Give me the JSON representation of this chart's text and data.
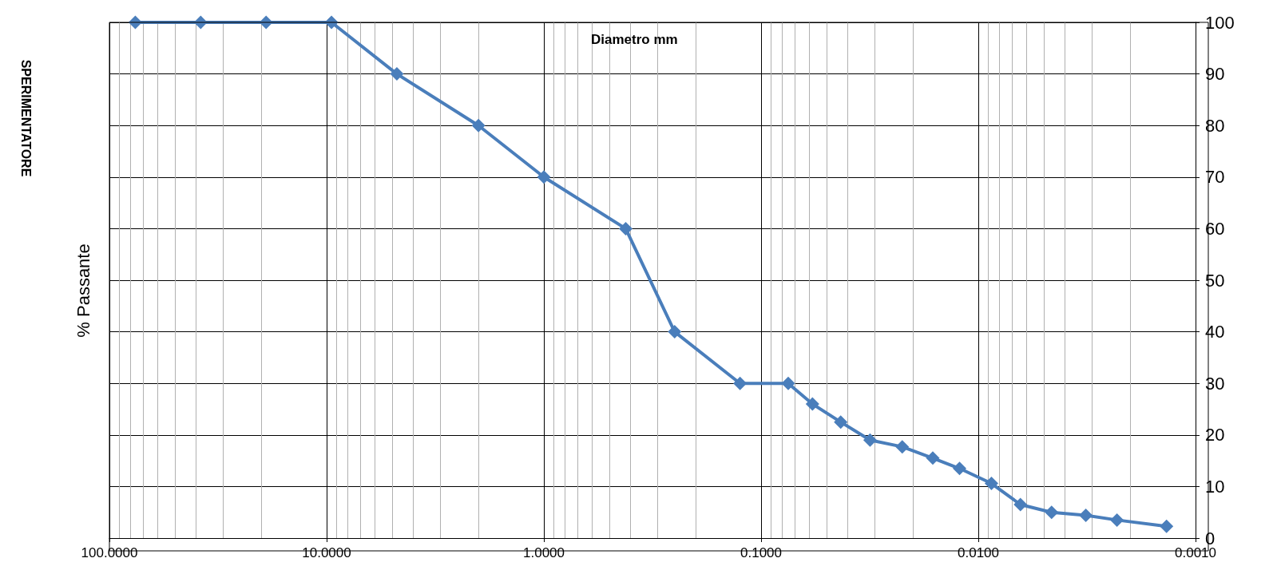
{
  "chart_data": {
    "type": "line",
    "title": "Diametro mm",
    "ylabel": "% Passante",
    "annotations": [
      "SPERIMENTATORE"
    ],
    "log": "x",
    "grid": true,
    "marker": "diamond",
    "line_style": "solid",
    "xlim": [
      100,
      0.001
    ],
    "xticks": [
      {
        "value": 100,
        "label": "100.0000"
      },
      {
        "value": 10,
        "label": "10.0000"
      },
      {
        "value": 1,
        "label": "1.0000"
      },
      {
        "value": 0.1,
        "label": "0.1000"
      },
      {
        "value": 0.01,
        "label": "0.0100"
      },
      {
        "value": 0.001,
        "label": "0.0010"
      }
    ],
    "ylim": [
      0,
      100
    ],
    "yticks": [
      0,
      10,
      20,
      30,
      40,
      50,
      60,
      70,
      80,
      90,
      100
    ],
    "x": [
      76,
      38,
      19,
      9.5,
      4.75,
      2,
      1,
      0.42,
      0.25,
      0.125,
      0.075,
      0.058,
      0.043,
      0.0315,
      0.0224,
      0.0162,
      0.0122,
      0.0087,
      0.0064,
      0.0046,
      0.0032,
      0.0023,
      0.00136
    ],
    "series": [
      {
        "color": "#4a7ebb",
        "values": [
          100,
          100,
          100,
          100,
          90,
          80,
          70,
          60,
          40,
          30,
          30,
          26,
          22.5,
          19,
          17.7,
          15.5,
          13.5,
          10.6,
          6.5,
          5,
          4.4,
          3.5,
          2.3
        ]
      }
    ]
  }
}
